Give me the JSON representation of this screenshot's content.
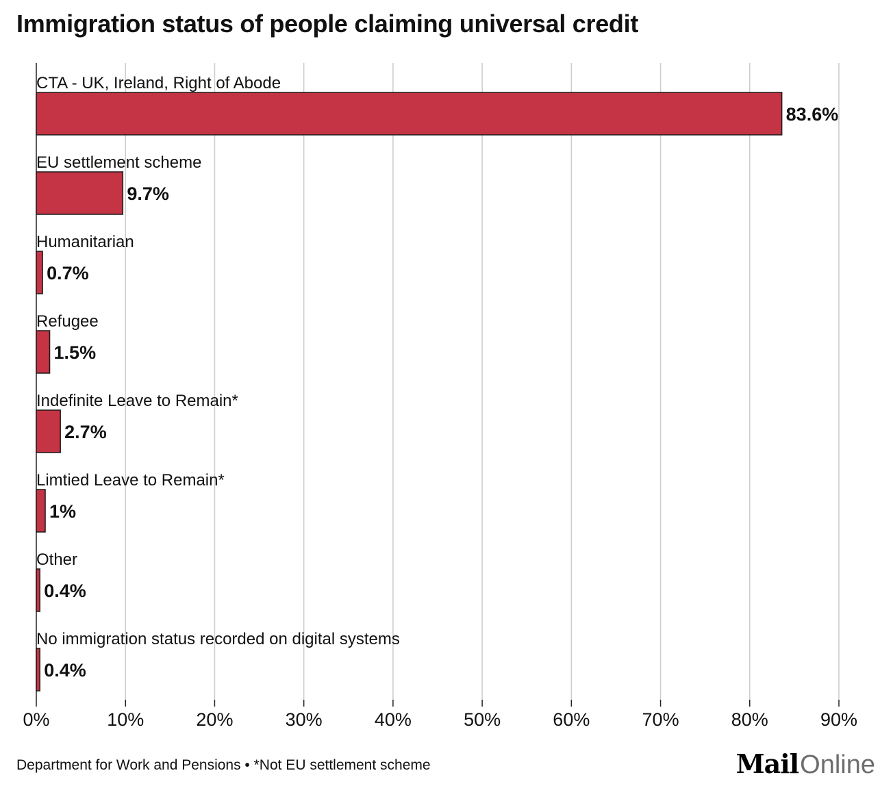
{
  "chart_data": {
    "type": "bar",
    "orientation": "horizontal",
    "title": "Immigration status of people claiming universal credit",
    "categories": [
      "CTA - UK, Ireland, Right of Abode",
      "EU settlement scheme",
      "Humanitarian",
      "Refugee",
      "Indefinite Leave to Remain*",
      "Limtied Leave to Remain*",
      "Other",
      "No immigration status recorded on digital systems"
    ],
    "values": [
      83.6,
      9.7,
      0.7,
      1.5,
      2.7,
      1,
      0.4,
      0.4
    ],
    "value_labels": [
      "83.6%",
      "9.7%",
      "0.7%",
      "1.5%",
      "2.7%",
      "1%",
      "0.4%",
      "0.4%"
    ],
    "xlim": [
      0,
      90
    ],
    "x_ticks": [
      0,
      10,
      20,
      30,
      40,
      50,
      60,
      70,
      80,
      90
    ],
    "x_tick_labels": [
      "0%",
      "10%",
      "20%",
      "30%",
      "40%",
      "50%",
      "60%",
      "70%",
      "80%",
      "90%"
    ],
    "xlabel": "",
    "ylabel": "",
    "grid": "vertical",
    "bar_color": "#c43444",
    "bar_stroke": "#1a1a1a",
    "grid_color": "#cccccc"
  },
  "footer": {
    "source": "Department for Work and Pensions • *Not EU settlement scheme",
    "logo_mail": "Mail",
    "logo_online": "Online"
  }
}
